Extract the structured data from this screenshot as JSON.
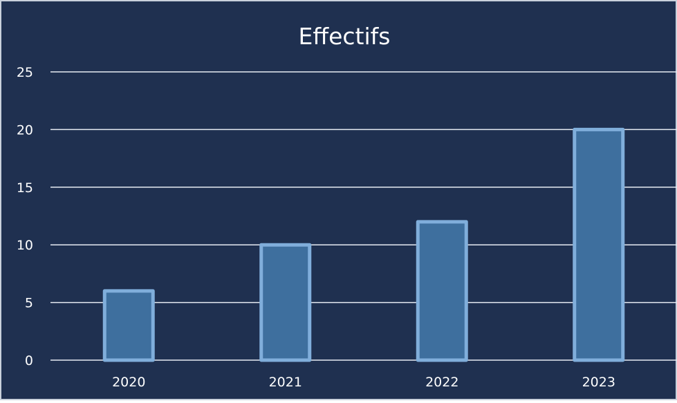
{
  "chart_data": {
    "type": "bar",
    "title": "Effectifs",
    "xlabel": "",
    "ylabel": "",
    "categories": [
      "2020",
      "2021",
      "2022",
      "2023"
    ],
    "values": [
      6,
      10,
      12,
      20
    ],
    "ylim": [
      0,
      25
    ],
    "yticks": [
      0,
      5,
      10,
      15,
      20,
      25
    ],
    "grid": true,
    "legend": "none",
    "colors": {
      "background": "#1f3050",
      "frame": "#c9d1dc",
      "bar_fill": "#3e6f9e",
      "bar_stroke": "#80aedb",
      "gridline": "#e8edf4",
      "text": "#ffffff"
    }
  }
}
